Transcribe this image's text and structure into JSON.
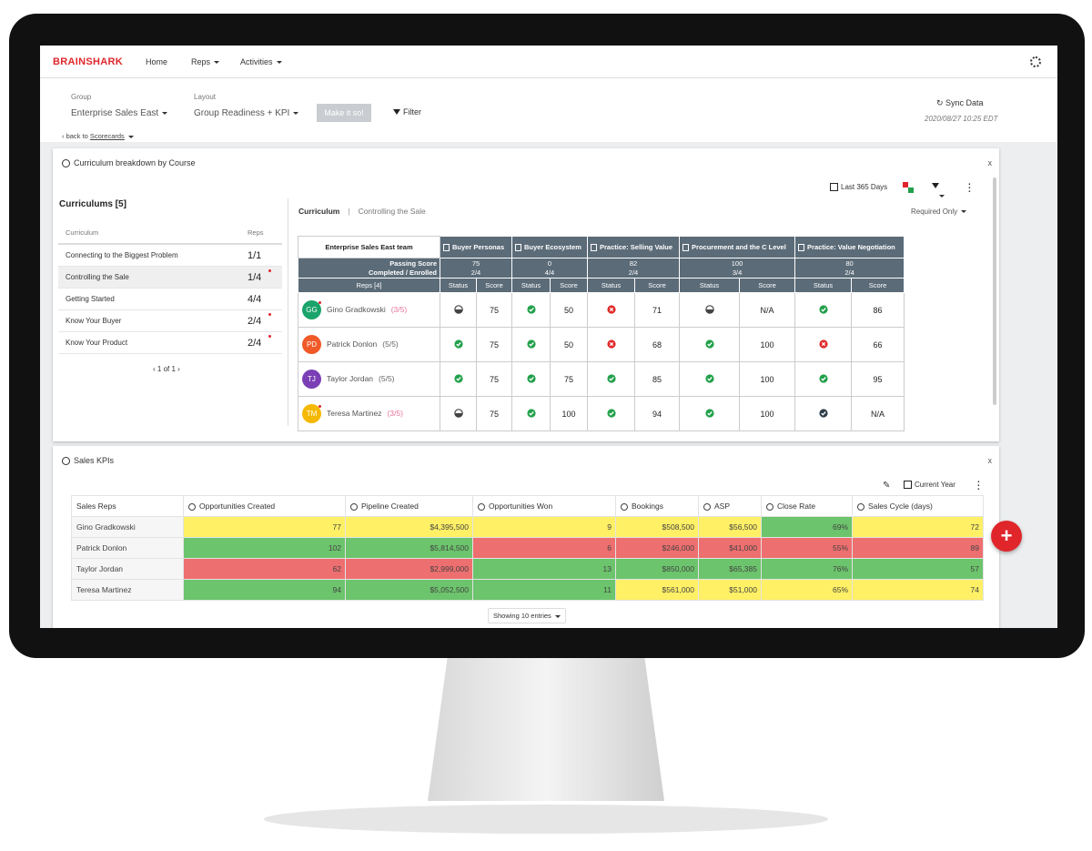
{
  "nav": {
    "brand": "BRAINSHARK",
    "items": [
      {
        "label": "Home",
        "dropdown": false
      },
      {
        "label": "Reps",
        "dropdown": true
      },
      {
        "label": "Activities",
        "dropdown": true
      }
    ]
  },
  "toolbar": {
    "group_label": "Group",
    "group_value": "Enterprise Sales East",
    "layout_label": "Layout",
    "layout_value": "Group Readiness + KPI",
    "apply_button": "Make it so!",
    "filter": "Filter",
    "back": "back to",
    "back_link": "Scorecards",
    "sync": "Sync Data",
    "timestamp": "2020/08/27 10:25 EDT"
  },
  "curriculum_panel": {
    "title": "Curriculum breakdown by Course",
    "date_range": "Last 365 Days",
    "heading": "Curriculums [5]",
    "columns": [
      "Curriculum",
      "Reps"
    ],
    "rows": [
      {
        "name": "Connecting to the Biggest Problem",
        "reps": "1/1",
        "alert": false,
        "selected": false
      },
      {
        "name": "Controlling the Sale",
        "reps": "1/4",
        "alert": true,
        "selected": true
      },
      {
        "name": "Getting Started",
        "reps": "4/4",
        "alert": false,
        "selected": false
      },
      {
        "name": "Know Your Buyer",
        "reps": "2/4",
        "alert": true,
        "selected": false
      },
      {
        "name": "Know Your Product",
        "reps": "2/4",
        "alert": true,
        "selected": false
      }
    ],
    "pager": "1 of 1",
    "breadcrumb": "Curriculum",
    "breadcrumb_current": "Controlling the Sale",
    "requirement_filter": "Required Only",
    "matrix": {
      "team": "Enterprise Sales East team",
      "passing_label": "Passing Score",
      "completed_label": "Completed / Enrolled",
      "reps_label": "Reps [4]",
      "sub_headers": [
        "Status",
        "Score"
      ],
      "courses": [
        {
          "name": "Buyer Personas",
          "passing": "75",
          "completed": "2/4"
        },
        {
          "name": "Buyer Ecosystem",
          "passing": "0",
          "completed": "4/4"
        },
        {
          "name": "Practice: Selling Value",
          "passing": "82",
          "completed": "2/4"
        },
        {
          "name": "Procurement and the C Level",
          "passing": "100",
          "completed": "3/4"
        },
        {
          "name": "Practice: Value Negotiation",
          "passing": "80",
          "completed": "2/4"
        }
      ],
      "reps": [
        {
          "initials": "GG",
          "name": "Gino Gradkowski",
          "progress": "(3/5)",
          "complete": false,
          "color": "#1aa36a",
          "alert": true,
          "cells": [
            {
              "status": "in-progress",
              "score": "75"
            },
            {
              "status": "passed",
              "score": "50"
            },
            {
              "status": "failed",
              "score": "71"
            },
            {
              "status": "in-progress",
              "score": "N/A"
            },
            {
              "status": "passed",
              "score": "86"
            }
          ]
        },
        {
          "initials": "PD",
          "name": "Patrick Donlon",
          "progress": "(5/5)",
          "complete": true,
          "color": "#f05a28",
          "alert": false,
          "cells": [
            {
              "status": "passed",
              "score": "75"
            },
            {
              "status": "passed",
              "score": "50"
            },
            {
              "status": "failed",
              "score": "68"
            },
            {
              "status": "passed",
              "score": "100"
            },
            {
              "status": "failed",
              "score": "66"
            }
          ]
        },
        {
          "initials": "TJ",
          "name": "Taylor Jordan",
          "progress": "(5/5)",
          "complete": true,
          "color": "#7b3fb5",
          "alert": false,
          "cells": [
            {
              "status": "passed",
              "score": "75"
            },
            {
              "status": "passed",
              "score": "75"
            },
            {
              "status": "passed",
              "score": "85"
            },
            {
              "status": "passed",
              "score": "100"
            },
            {
              "status": "passed",
              "score": "95"
            }
          ]
        },
        {
          "initials": "TM",
          "name": "Teresa Martinez",
          "progress": "(3/5)",
          "complete": false,
          "color": "#f5b800",
          "alert": true,
          "cells": [
            {
              "status": "in-progress",
              "score": "75"
            },
            {
              "status": "passed",
              "score": "100"
            },
            {
              "status": "passed",
              "score": "94"
            },
            {
              "status": "passed",
              "score": "100"
            },
            {
              "status": "completed",
              "score": "N/A"
            }
          ]
        }
      ]
    }
  },
  "kpi_panel": {
    "title": "Sales KPIs",
    "period": "Current Year",
    "columns": [
      "Sales Reps",
      "Opportunities Created",
      "Pipeline Created",
      "Opportunities Won",
      "Bookings",
      "ASP",
      "Close Rate",
      "Sales Cycle (days)"
    ],
    "rows": [
      {
        "rep": "Gino Gradkowski",
        "cells": [
          {
            "text": "77",
            "color": "#fff066"
          },
          {
            "text": "$4,395,500",
            "color": "#fff066"
          },
          {
            "text": "9",
            "color": "#fff066"
          },
          {
            "text": "$508,500",
            "color": "#fff066"
          },
          {
            "text": "$56,500",
            "color": "#fff066"
          },
          {
            "text": "69%",
            "color": "#6cc46c"
          },
          {
            "text": "72",
            "color": "#fff066"
          }
        ]
      },
      {
        "rep": "Patrick Donlon",
        "cells": [
          {
            "text": "102",
            "color": "#6cc46c"
          },
          {
            "text": "$5,814,500",
            "color": "#6cc46c"
          },
          {
            "text": "6",
            "color": "#ee6f6f"
          },
          {
            "text": "$246,000",
            "color": "#ee6f6f"
          },
          {
            "text": "$41,000",
            "color": "#ee6f6f"
          },
          {
            "text": "55%",
            "color": "#ee6f6f"
          },
          {
            "text": "89",
            "color": "#ee6f6f"
          }
        ]
      },
      {
        "rep": "Taylor Jordan",
        "cells": [
          {
            "text": "62",
            "color": "#ee6f6f"
          },
          {
            "text": "$2,999,000",
            "color": "#ee6f6f"
          },
          {
            "text": "13",
            "color": "#6cc46c"
          },
          {
            "text": "$850,000",
            "color": "#6cc46c"
          },
          {
            "text": "$65,385",
            "color": "#6cc46c"
          },
          {
            "text": "76%",
            "color": "#6cc46c"
          },
          {
            "text": "57",
            "color": "#6cc46c"
          }
        ]
      },
      {
        "rep": "Teresa Martinez",
        "cells": [
          {
            "text": "94",
            "color": "#6cc46c"
          },
          {
            "text": "$5,052,500",
            "color": "#6cc46c"
          },
          {
            "text": "11",
            "color": "#6cc46c"
          },
          {
            "text": "$561,000",
            "color": "#fff066"
          },
          {
            "text": "$51,000",
            "color": "#fff066"
          },
          {
            "text": "65%",
            "color": "#fff066"
          },
          {
            "text": "74",
            "color": "#fff066"
          }
        ]
      }
    ],
    "footer": "Showing 10 entries"
  }
}
